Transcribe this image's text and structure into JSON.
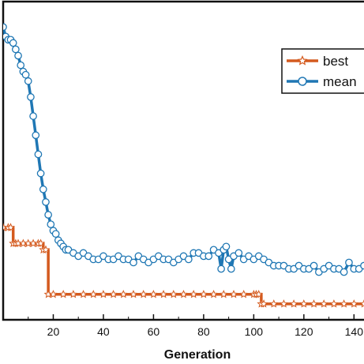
{
  "chart_data": {
    "type": "line",
    "xlabel": "Generation",
    "ylabel": "",
    "xlim": [
      0,
      144
    ],
    "xticks": [
      20,
      40,
      60,
      80,
      100,
      120,
      140
    ],
    "xtick_labels": [
      "20",
      "40",
      "60",
      "80",
      "100",
      "120",
      "140"
    ],
    "ylim": [
      0,
      1
    ],
    "grid": false,
    "legend": "top-right",
    "series": [
      {
        "name": "best",
        "color": "#d45a1e",
        "marker": "star",
        "x": [
          0,
          2,
          3,
          4,
          5,
          6,
          8,
          10,
          12,
          14,
          15,
          16,
          17,
          18,
          20,
          24,
          28,
          32,
          36,
          40,
          44,
          48,
          52,
          56,
          60,
          64,
          68,
          72,
          76,
          80,
          84,
          88,
          92,
          96,
          100,
          101,
          102,
          103,
          104,
          108,
          112,
          116,
          120,
          124,
          128,
          132,
          136,
          140,
          144
        ],
        "values": [
          0.29,
          0.29,
          0.29,
          0.24,
          0.24,
          0.24,
          0.24,
          0.24,
          0.24,
          0.24,
          0.24,
          0.22,
          0.22,
          0.08,
          0.08,
          0.08,
          0.08,
          0.08,
          0.08,
          0.08,
          0.08,
          0.08,
          0.08,
          0.08,
          0.08,
          0.08,
          0.08,
          0.08,
          0.08,
          0.08,
          0.08,
          0.08,
          0.08,
          0.08,
          0.08,
          0.08,
          0.08,
          0.05,
          0.05,
          0.05,
          0.05,
          0.05,
          0.05,
          0.05,
          0.05,
          0.05,
          0.05,
          0.05,
          0.05
        ]
      },
      {
        "name": "mean",
        "color": "#1f77b4",
        "marker": "circle",
        "x": [
          0,
          1,
          2,
          3,
          4,
          5,
          6,
          7,
          8,
          9,
          10,
          11,
          12,
          13,
          14,
          15,
          16,
          17,
          18,
          19,
          20,
          21,
          22,
          23,
          24,
          25,
          26,
          28,
          30,
          32,
          34,
          36,
          38,
          40,
          42,
          44,
          46,
          48,
          50,
          52,
          54,
          56,
          58,
          60,
          62,
          64,
          66,
          68,
          70,
          72,
          74,
          76,
          78,
          80,
          82,
          84,
          86,
          87,
          88,
          89,
          90,
          91,
          92,
          94,
          96,
          98,
          100,
          102,
          104,
          106,
          108,
          110,
          112,
          114,
          116,
          118,
          120,
          122,
          124,
          126,
          128,
          130,
          132,
          134,
          136,
          138,
          140,
          142,
          144
        ],
        "values": [
          0.92,
          0.89,
          0.88,
          0.88,
          0.87,
          0.85,
          0.83,
          0.8,
          0.78,
          0.77,
          0.75,
          0.7,
          0.64,
          0.58,
          0.52,
          0.46,
          0.41,
          0.37,
          0.33,
          0.3,
          0.28,
          0.27,
          0.25,
          0.24,
          0.23,
          0.22,
          0.22,
          0.21,
          0.2,
          0.21,
          0.2,
          0.19,
          0.19,
          0.2,
          0.19,
          0.19,
          0.2,
          0.19,
          0.19,
          0.18,
          0.2,
          0.19,
          0.18,
          0.19,
          0.2,
          0.19,
          0.19,
          0.18,
          0.19,
          0.2,
          0.19,
          0.21,
          0.21,
          0.2,
          0.2,
          0.22,
          0.21,
          0.16,
          0.22,
          0.23,
          0.19,
          0.16,
          0.2,
          0.21,
          0.19,
          0.2,
          0.19,
          0.2,
          0.19,
          0.18,
          0.17,
          0.17,
          0.17,
          0.16,
          0.16,
          0.17,
          0.16,
          0.16,
          0.17,
          0.15,
          0.16,
          0.17,
          0.16,
          0.16,
          0.15,
          0.18,
          0.16,
          0.16,
          0.17
        ]
      }
    ]
  }
}
